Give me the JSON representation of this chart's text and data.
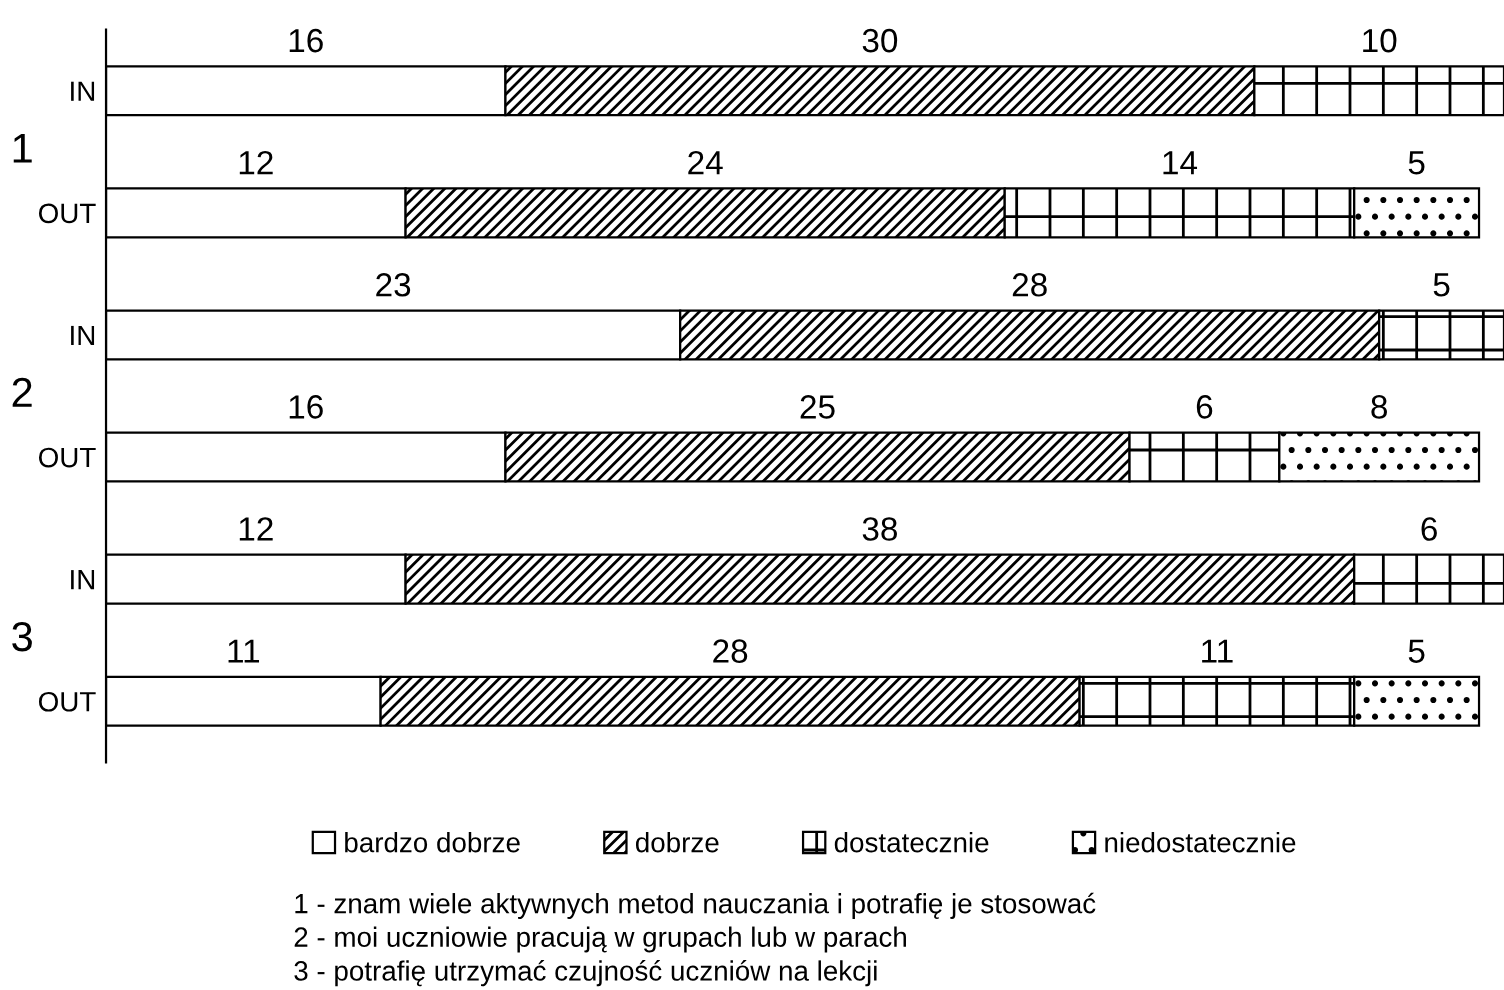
{
  "chart_data": {
    "type": "bar",
    "orientation": "horizontal",
    "stacked": true,
    "data_labels": true,
    "categories": [
      "IN",
      "OUT",
      "IN",
      "OUT",
      "IN",
      "OUT"
    ],
    "series": [
      {
        "name": "bardzo dobrze",
        "color": "#ffffff",
        "values": [
          16,
          12,
          23,
          16,
          12,
          11
        ]
      },
      {
        "name": "dobrze",
        "color": "#000000",
        "values": [
          30,
          24,
          28,
          25,
          38,
          28
        ]
      },
      {
        "name": "dostatecznie",
        "color": "#000000",
        "values": [
          10,
          14,
          5,
          6,
          6,
          11
        ]
      },
      {
        "name": "niedostatecznie",
        "color": "#000000",
        "values": [
          null,
          5,
          null,
          8,
          null,
          5
        ]
      }
    ],
    "xlim": [
      0,
      56
    ],
    "legend": "bottom",
    "annotations": [
      "1",
      "2",
      "3",
      "1 - znam wiele aktywnych metod nauczania i potrafię je stosować",
      "2 - moi uczniowie pracują w grupach lub w parach",
      "3 - potrafię utrzymać czujność uczniów na lekcji"
    ]
  }
}
